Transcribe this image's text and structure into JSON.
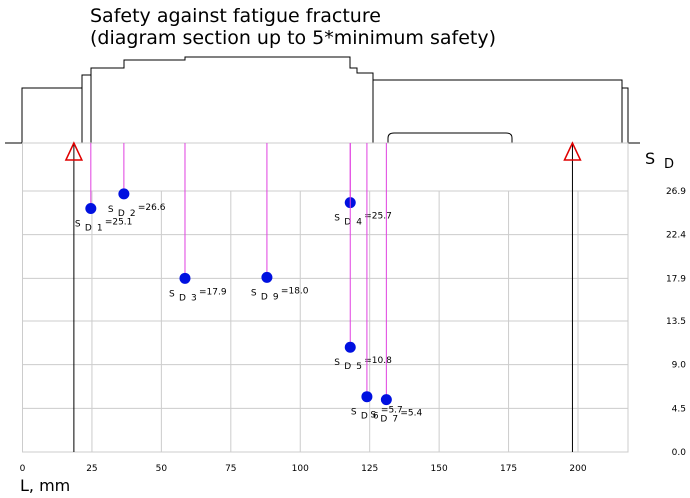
{
  "chart_data": {
    "type": "scatter",
    "title": "Safety against fatigue fracture",
    "subtitle": "(diagram section up to 5*minimum safety)",
    "x_label": "L, mm",
    "y_label": "S",
    "y_label_sub": "D",
    "point_prefix": "S",
    "point_sub": "D",
    "point_names": [
      "1",
      "2",
      "3",
      "9",
      "4",
      "5",
      "6",
      "7"
    ],
    "x": [
      24.6,
      36.5,
      58.5,
      88,
      118,
      118,
      124,
      131
    ],
    "values": [
      25.1,
      26.6,
      17.9,
      18.0,
      25.7,
      10.8,
      5.7,
      5.4
    ],
    "value_labels": [
      "=25.1",
      "=26.6",
      "=17.9",
      "=18.0",
      "=25.7",
      "=10.8",
      "=5.7",
      "=5.4"
    ],
    "supports": [
      18.5,
      198
    ],
    "color": "#0010e0",
    "line_color": "#e040e0",
    "xlim": [
      0,
      218
    ],
    "ylim": [
      0,
      26.9
    ],
    "xticks": [
      0,
      25,
      50,
      75,
      100,
      125,
      150,
      175,
      200
    ],
    "yticks": [
      {
        "value": 0,
        "label": "0.0"
      },
      4.5,
      {
        "value": 9,
        "label": "9.0"
      },
      13.5,
      17.9,
      22.4,
      26.9
    ],
    "grid": true
  }
}
